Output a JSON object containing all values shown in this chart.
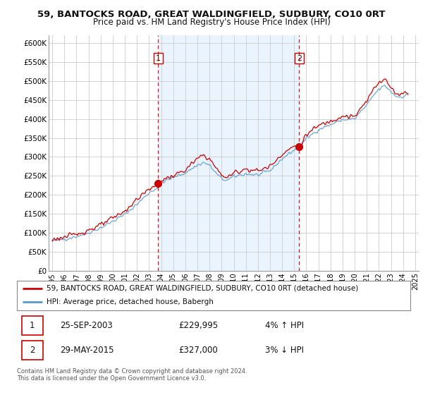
{
  "title": "59, BANTOCKS ROAD, GREAT WALDINGFIELD, SUDBURY, CO10 0RT",
  "subtitle": "Price paid vs. HM Land Registry's House Price Index (HPI)",
  "legend_label_red": "59, BANTOCKS ROAD, GREAT WALDINGFIELD, SUDBURY, CO10 0RT (detached house)",
  "legend_label_blue": "HPI: Average price, detached house, Babergh",
  "annotation1_num": "1",
  "annotation1_date": "25-SEP-2003",
  "annotation1_price": "£229,995",
  "annotation1_hpi": "4% ↑ HPI",
  "annotation2_num": "2",
  "annotation2_date": "29-MAY-2015",
  "annotation2_price": "£327,000",
  "annotation2_hpi": "3% ↓ HPI",
  "footnote": "Contains HM Land Registry data © Crown copyright and database right 2024.\nThis data is licensed under the Open Government Licence v3.0.",
  "ylim_min": 0,
  "ylim_max": 620000,
  "yticks": [
    0,
    50000,
    100000,
    150000,
    200000,
    250000,
    300000,
    350000,
    400000,
    450000,
    500000,
    550000,
    600000
  ],
  "ytick_labels": [
    "£0",
    "£50K",
    "£100K",
    "£150K",
    "£200K",
    "£250K",
    "£300K",
    "£350K",
    "£400K",
    "£450K",
    "£500K",
    "£550K",
    "£600K"
  ],
  "xtick_years": [
    1995,
    1996,
    1997,
    1998,
    1999,
    2000,
    2001,
    2002,
    2003,
    2004,
    2005,
    2006,
    2007,
    2008,
    2009,
    2010,
    2011,
    2012,
    2013,
    2014,
    2015,
    2016,
    2017,
    2018,
    2019,
    2020,
    2021,
    2022,
    2023,
    2024,
    2025
  ],
  "vline1_x": 2003.75,
  "vline2_x": 2015.42,
  "marker1_x": 2003.75,
  "marker1_y": 229995,
  "marker2_x": 2015.42,
  "marker2_y": 327000,
  "red_color": "#cc0000",
  "blue_color": "#5599cc",
  "blue_fill_color": "#ddeeff",
  "vline_color": "#cc0000",
  "background_color": "#ffffff",
  "grid_color": "#cccccc",
  "shade_color": "#ddeeff"
}
